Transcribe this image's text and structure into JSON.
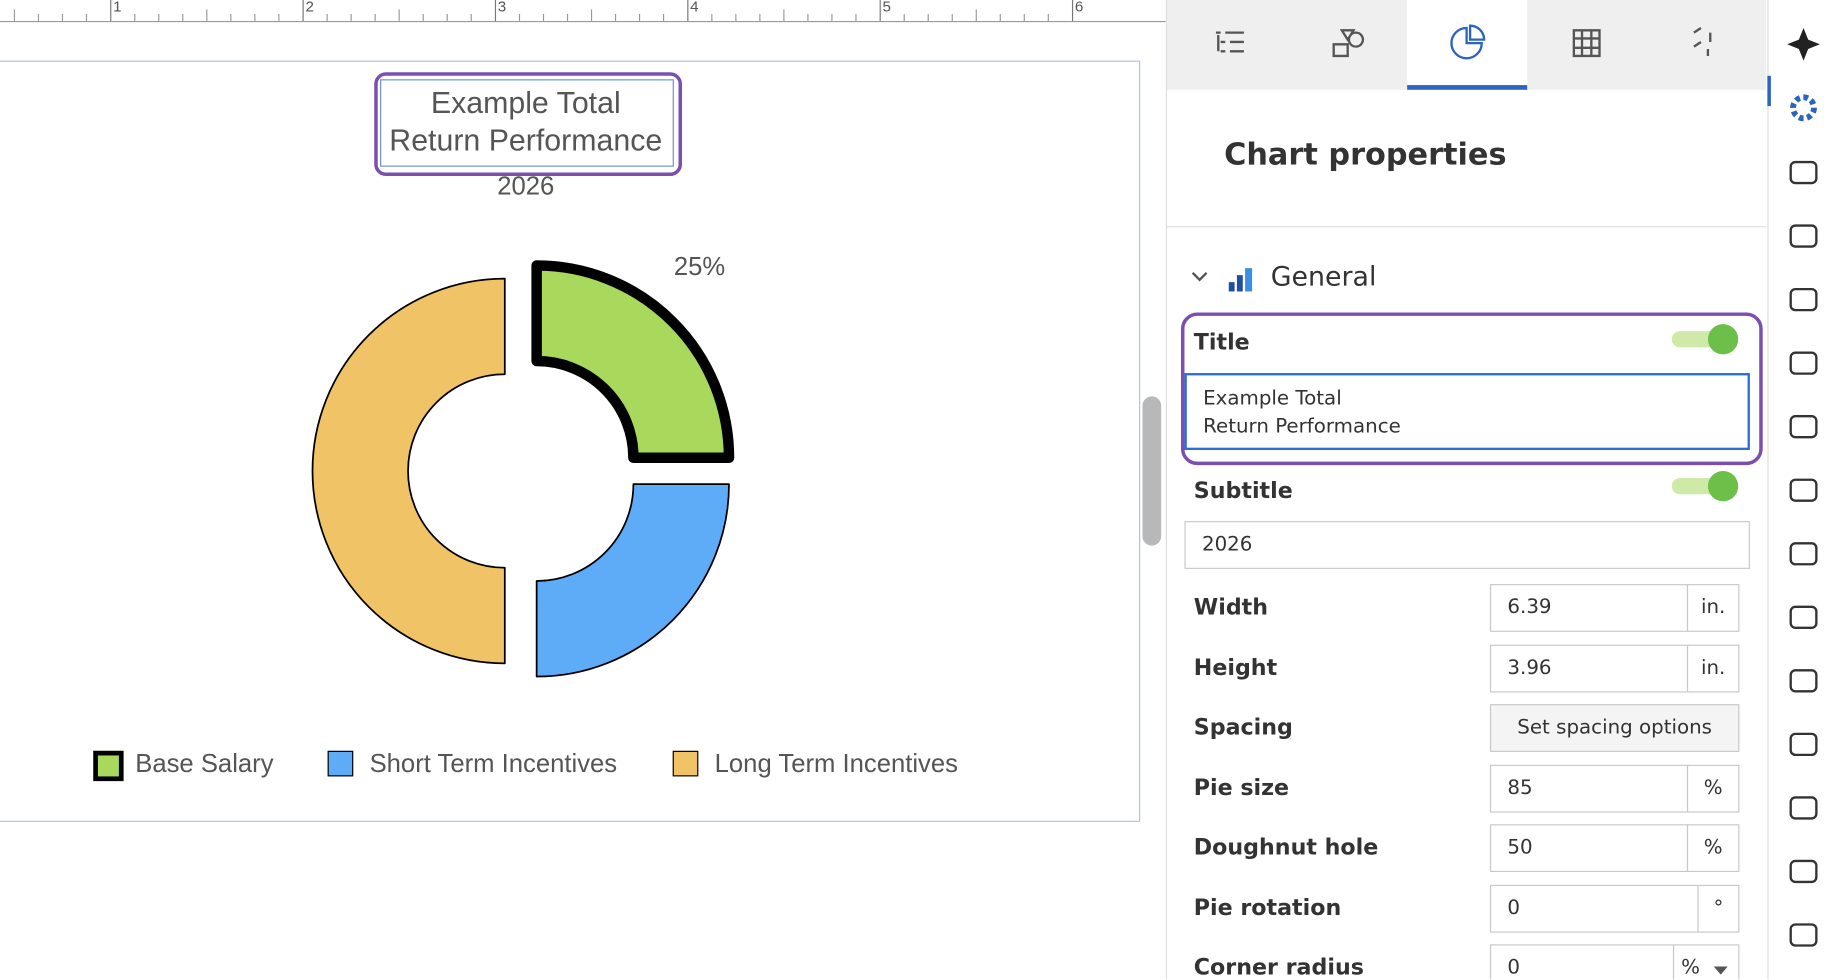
{
  "ruler": {
    "marks": [
      1,
      2,
      3,
      4,
      5,
      6
    ]
  },
  "chart_data": {
    "type": "pie",
    "title": "Example Total\nReturn Performance",
    "subtitle": "2026",
    "categories": [
      "Base Salary",
      "Short Term Incentives",
      "Long Term Incentives"
    ],
    "values": [
      25,
      25,
      50
    ],
    "value_labels": [
      "25%",
      null,
      null
    ],
    "colors": [
      "#a8d95c",
      "#5eacf7",
      "#f0c466"
    ]
  },
  "panel": {
    "heading": "Chart properties",
    "section": "General",
    "title": {
      "label": "Title",
      "value": "Example Total\nReturn Performance"
    },
    "subtitle": {
      "label": "Subtitle",
      "value": "2026"
    },
    "fields": [
      {
        "label": "Width",
        "value": 6.39,
        "unit": "in."
      },
      {
        "label": "Height",
        "value": 3.96,
        "unit": "in."
      },
      {
        "label": "Spacing",
        "button": "Set spacing options"
      },
      {
        "label": "Pie size",
        "value": 85,
        "unit": "%"
      },
      {
        "label": "Doughnut hole",
        "value": 50,
        "unit": "%"
      },
      {
        "label": "Pie rotation",
        "value": 0,
        "unit": "°"
      },
      {
        "label": "Corner radius",
        "value": 0,
        "unit": "%"
      }
    ]
  }
}
